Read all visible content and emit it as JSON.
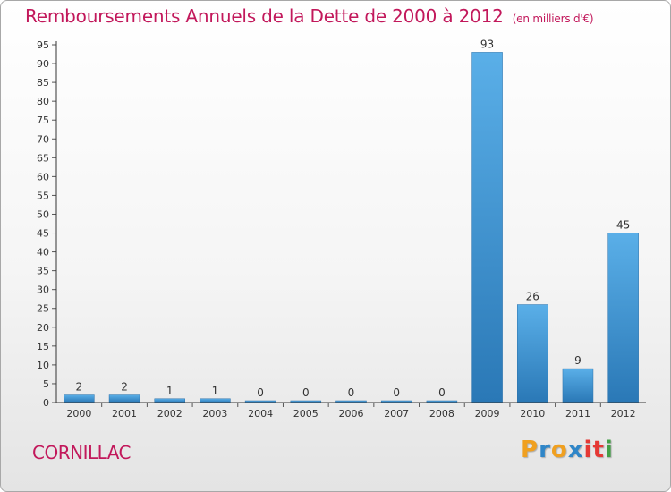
{
  "chart_data": {
    "type": "bar",
    "title": "Remboursements Annuels de la Dette de 2000 à 2012",
    "subtitle": "(en milliers d'€)",
    "categories": [
      "2000",
      "2001",
      "2002",
      "2003",
      "2004",
      "2005",
      "2006",
      "2007",
      "2008",
      "2009",
      "2010",
      "2011",
      "2012"
    ],
    "values": [
      2,
      2,
      1,
      1,
      0,
      0,
      0,
      0,
      0,
      93,
      26,
      9,
      45
    ],
    "ylim": [
      0,
      95
    ],
    "ytick_step": 5,
    "xlabel": "",
    "ylabel": "",
    "grid": false
  },
  "footer": {
    "commune": "CORNILLAC",
    "logo_letters": [
      "P",
      "r",
      "o",
      "x",
      "i",
      "t",
      "i"
    ]
  },
  "colors": {
    "title": "#c2185b",
    "bar_dark": "#2a78b6",
    "bar_light": "#5aafe8",
    "axis": "#333333",
    "logo": [
      "#f0a020",
      "#2f86c8",
      "#f0a020",
      "#2f86c8",
      "#e53935",
      "#e53935",
      "#43a047"
    ]
  }
}
